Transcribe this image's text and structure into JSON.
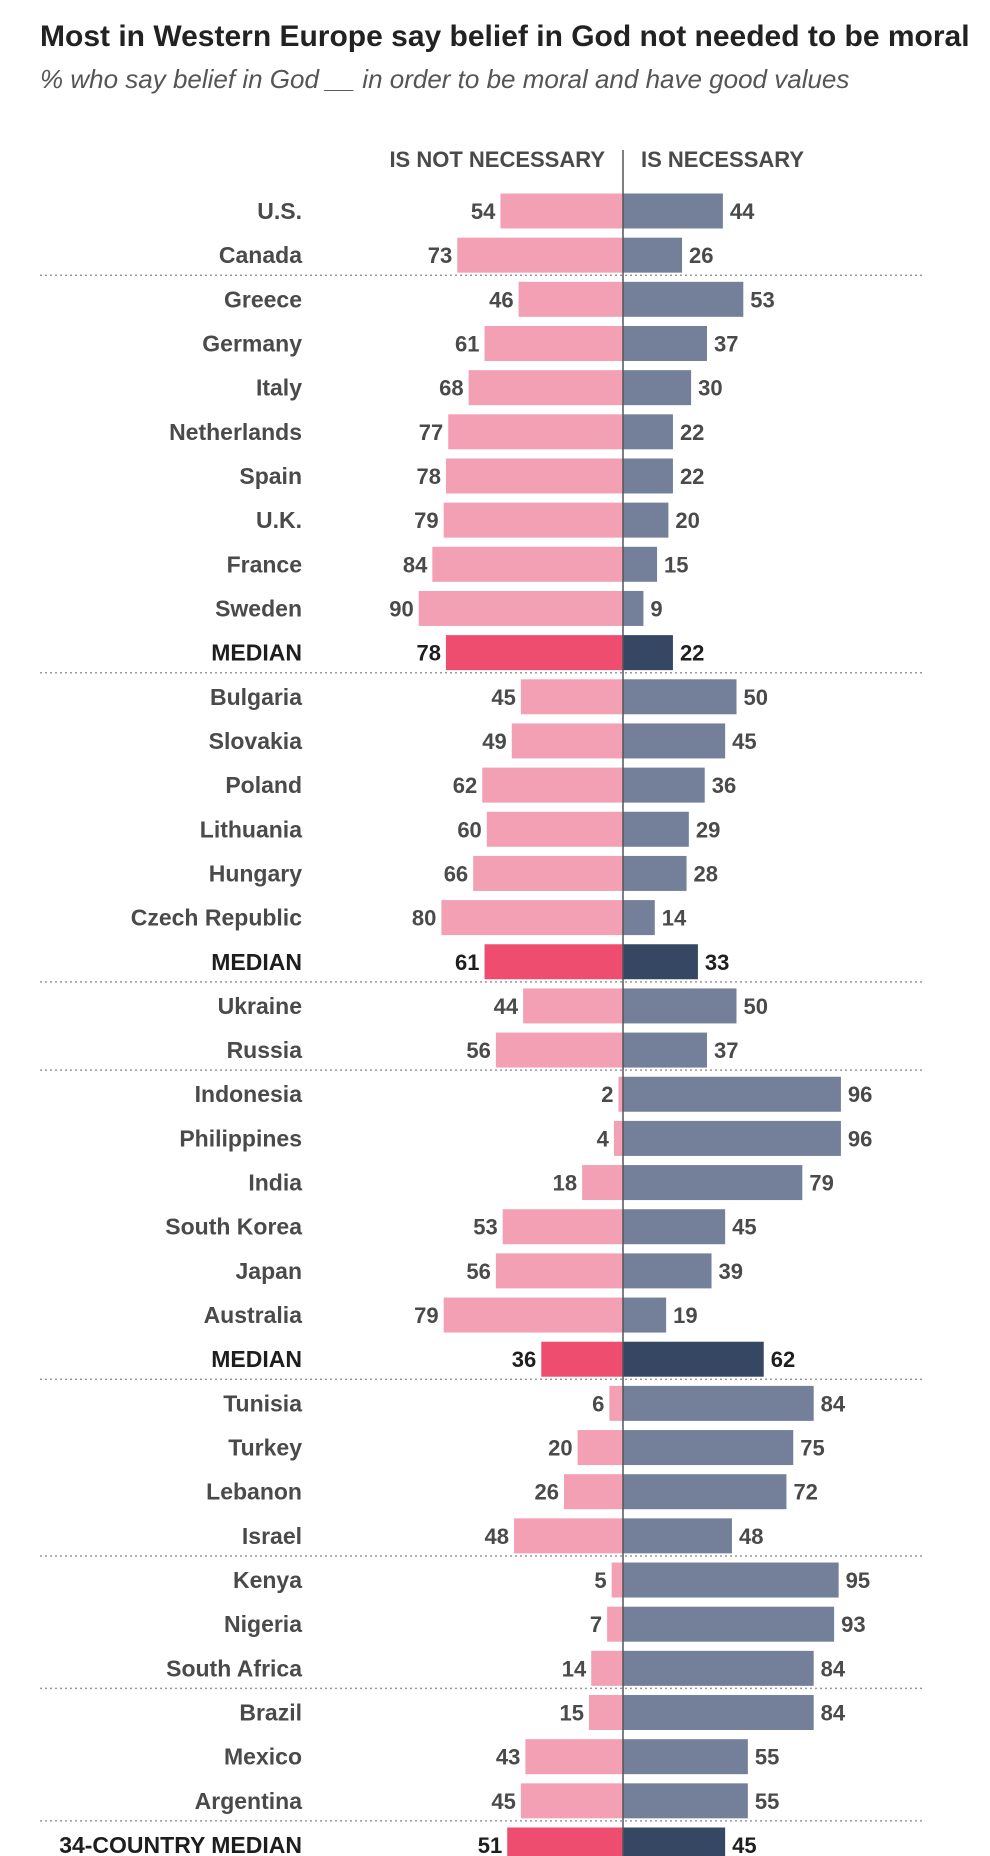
{
  "title": "Most in Western Europe say belief in God not needed to be moral",
  "subtitle": "% who say belief in God __ in order to be moral and have good values",
  "colors": {
    "not_necessary": "#f4a0b4",
    "necessary": "#74809a",
    "not_necessary_median": "#ee4d70",
    "necessary_median": "#364763",
    "axis": "#555555",
    "divider": "#999999"
  },
  "chart_data": {
    "type": "bar",
    "orientation": "horizontal-diverging",
    "series": [
      {
        "name": "IS NOT NECESSARY",
        "key": "not_necessary"
      },
      {
        "name": "IS NECESSARY",
        "key": "necessary"
      }
    ],
    "rows": [
      {
        "label": "U.S.",
        "not_necessary": 54,
        "necessary": 44
      },
      {
        "label": "Canada",
        "not_necessary": 73,
        "necessary": 26
      },
      {
        "label": "Greece",
        "not_necessary": 46,
        "necessary": 53,
        "group_start": true
      },
      {
        "label": "Germany",
        "not_necessary": 61,
        "necessary": 37
      },
      {
        "label": "Italy",
        "not_necessary": 68,
        "necessary": 30
      },
      {
        "label": "Netherlands",
        "not_necessary": 77,
        "necessary": 22
      },
      {
        "label": "Spain",
        "not_necessary": 78,
        "necessary": 22
      },
      {
        "label": "U.K.",
        "not_necessary": 79,
        "necessary": 20
      },
      {
        "label": "France",
        "not_necessary": 84,
        "necessary": 15
      },
      {
        "label": "Sweden",
        "not_necessary": 90,
        "necessary": 9
      },
      {
        "label": "MEDIAN",
        "not_necessary": 78,
        "necessary": 22,
        "median": true
      },
      {
        "label": "Bulgaria",
        "not_necessary": 45,
        "necessary": 50,
        "group_start": true
      },
      {
        "label": "Slovakia",
        "not_necessary": 49,
        "necessary": 45
      },
      {
        "label": "Poland",
        "not_necessary": 62,
        "necessary": 36
      },
      {
        "label": "Lithuania",
        "not_necessary": 60,
        "necessary": 29
      },
      {
        "label": "Hungary",
        "not_necessary": 66,
        "necessary": 28
      },
      {
        "label": "Czech Republic",
        "not_necessary": 80,
        "necessary": 14
      },
      {
        "label": "MEDIAN",
        "not_necessary": 61,
        "necessary": 33,
        "median": true
      },
      {
        "label": "Ukraine",
        "not_necessary": 44,
        "necessary": 50,
        "group_start": true
      },
      {
        "label": "Russia",
        "not_necessary": 56,
        "necessary": 37
      },
      {
        "label": "Indonesia",
        "not_necessary": 2,
        "necessary": 96,
        "group_start": true
      },
      {
        "label": "Philippines",
        "not_necessary": 4,
        "necessary": 96
      },
      {
        "label": "India",
        "not_necessary": 18,
        "necessary": 79
      },
      {
        "label": "South Korea",
        "not_necessary": 53,
        "necessary": 45
      },
      {
        "label": "Japan",
        "not_necessary": 56,
        "necessary": 39
      },
      {
        "label": "Australia",
        "not_necessary": 79,
        "necessary": 19
      },
      {
        "label": "MEDIAN",
        "not_necessary": 36,
        "necessary": 62,
        "median": true
      },
      {
        "label": "Tunisia",
        "not_necessary": 6,
        "necessary": 84,
        "group_start": true
      },
      {
        "label": "Turkey",
        "not_necessary": 20,
        "necessary": 75
      },
      {
        "label": "Lebanon",
        "not_necessary": 26,
        "necessary": 72
      },
      {
        "label": "Israel",
        "not_necessary": 48,
        "necessary": 48
      },
      {
        "label": "Kenya",
        "not_necessary": 5,
        "necessary": 95,
        "group_start": true
      },
      {
        "label": "Nigeria",
        "not_necessary": 7,
        "necessary": 93
      },
      {
        "label": "South Africa",
        "not_necessary": 14,
        "necessary": 84
      },
      {
        "label": "Brazil",
        "not_necessary": 15,
        "necessary": 84,
        "group_start": true
      },
      {
        "label": "Mexico",
        "not_necessary": 43,
        "necessary": 55
      },
      {
        "label": "Argentina",
        "not_necessary": 45,
        "necessary": 55
      },
      {
        "label": "34-COUNTRY MEDIAN",
        "not_necessary": 51,
        "necessary": 45,
        "median": true,
        "group_start": true
      }
    ],
    "xlim": [
      0,
      100
    ],
    "grid": false,
    "legend": "column headers at top"
  }
}
